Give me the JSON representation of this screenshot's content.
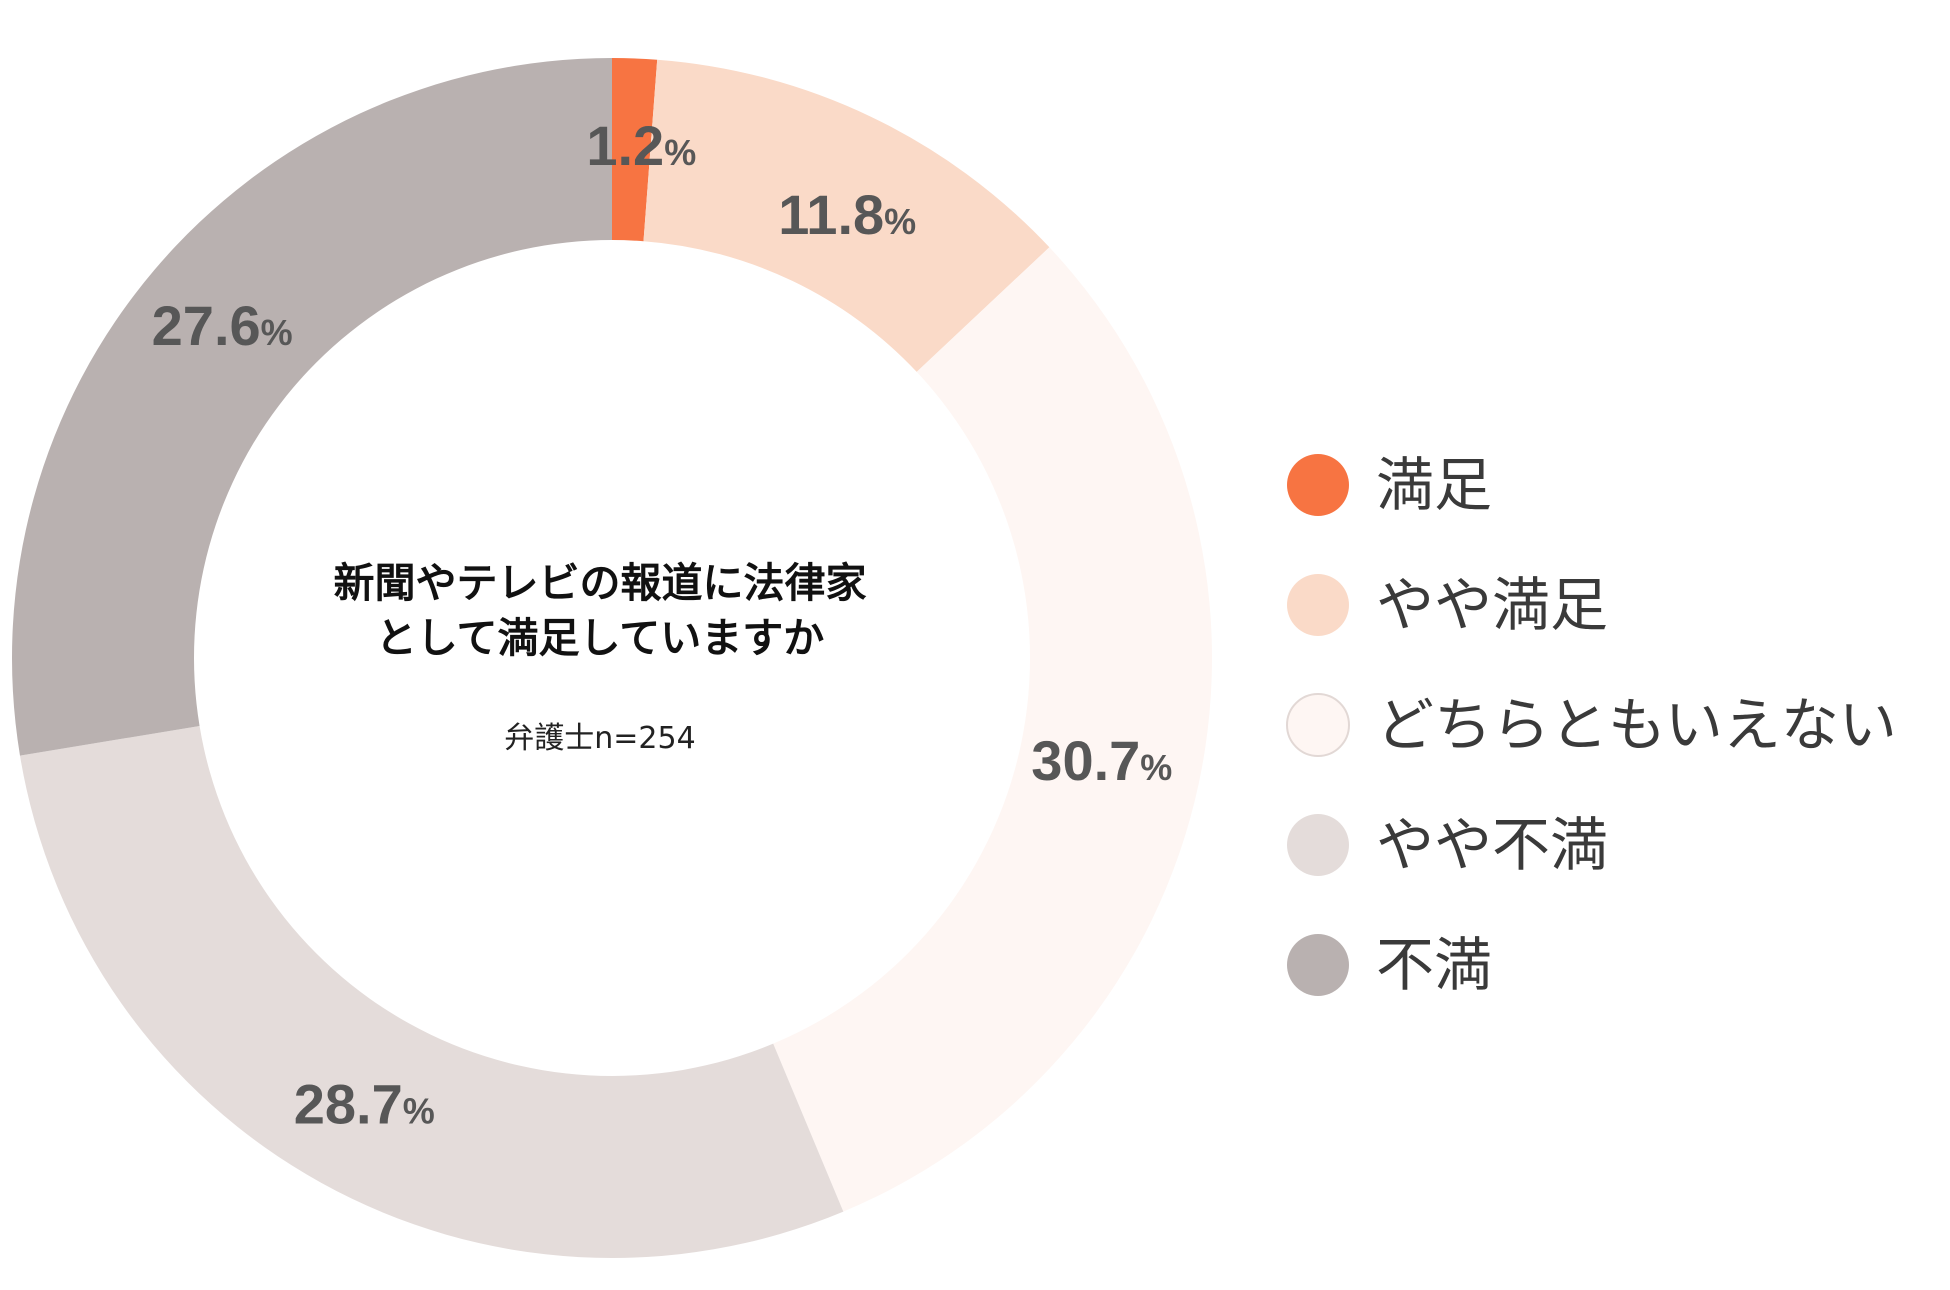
{
  "chart_data": {
    "type": "pie",
    "variant": "donut",
    "title_lines": [
      "新聞やテレビの報道に法律家",
      "として満足していますか"
    ],
    "subtitle": "弁護士n=254",
    "value_suffix": "%",
    "categories": [
      "満足",
      "やや満足",
      "どちらともいえない",
      "やや不満",
      "不満"
    ],
    "values": [
      1.2,
      11.8,
      30.7,
      28.7,
      27.6
    ],
    "value_labels": [
      "1.2",
      "11.8",
      "30.7",
      "28.7",
      "27.6"
    ],
    "colors": [
      "#F77442",
      "#FADAC8",
      "#FEF6F3",
      "#E4DCDA",
      "#B9B1B0"
    ],
    "legend_position": "right"
  }
}
